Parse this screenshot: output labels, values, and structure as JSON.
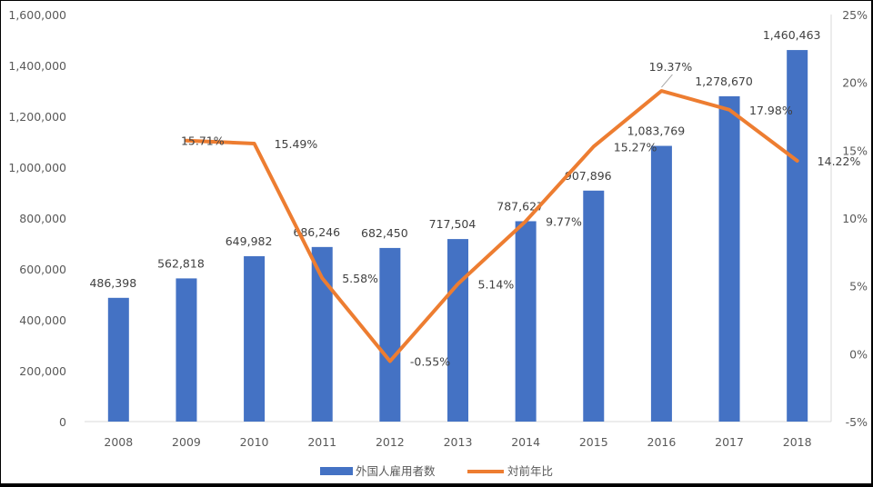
{
  "chart_data": {
    "type": "bar",
    "categories": [
      "2008",
      "2009",
      "2010",
      "2011",
      "2012",
      "2013",
      "2014",
      "2015",
      "2016",
      "2017",
      "2018"
    ],
    "series": [
      {
        "name": "外国人雇用者数",
        "type": "bar",
        "axis": "left",
        "color": "#4472C4",
        "values": [
          486398,
          562818,
          649982,
          686246,
          682450,
          717504,
          787627,
          907896,
          1083769,
          1278670,
          1460463
        ],
        "labels": [
          "486,398",
          "562,818",
          "649,982",
          "686,246",
          "682,450",
          "717,504",
          "787,627",
          "907,896",
          "1,083,769",
          "1,278,670",
          "1,460,463"
        ]
      },
      {
        "name": "対前年比",
        "type": "line",
        "axis": "right",
        "color": "#ED7D31",
        "values": [
          null,
          15.71,
          15.49,
          5.58,
          -0.55,
          5.14,
          9.77,
          15.27,
          19.37,
          17.98,
          14.22
        ],
        "labels": [
          "",
          "15.71%",
          "15.49%",
          "5.58%",
          "-0.55%",
          "5.14%",
          "9.77%",
          "15.27%",
          "19.37%",
          "17.98%",
          "14.22%"
        ]
      }
    ],
    "y_left": {
      "min": 0,
      "max": 1600000,
      "ticks": [
        0,
        200000,
        400000,
        600000,
        800000,
        1000000,
        1200000,
        1400000,
        1600000
      ],
      "tick_labels": [
        "0",
        "200,000",
        "400,000",
        "600,000",
        "800,000",
        "1,000,000",
        "1,200,000",
        "1,400,000",
        "1,600,000"
      ]
    },
    "y_right": {
      "min": -5,
      "max": 25,
      "ticks": [
        -5,
        0,
        5,
        10,
        15,
        20,
        25
      ],
      "tick_labels": [
        "-5%",
        "0%",
        "5%",
        "10%",
        "15%",
        "20%",
        "25%"
      ]
    },
    "grid": false,
    "legend_position": "bottom",
    "title": "",
    "xlabel": "",
    "ylabel": ""
  }
}
